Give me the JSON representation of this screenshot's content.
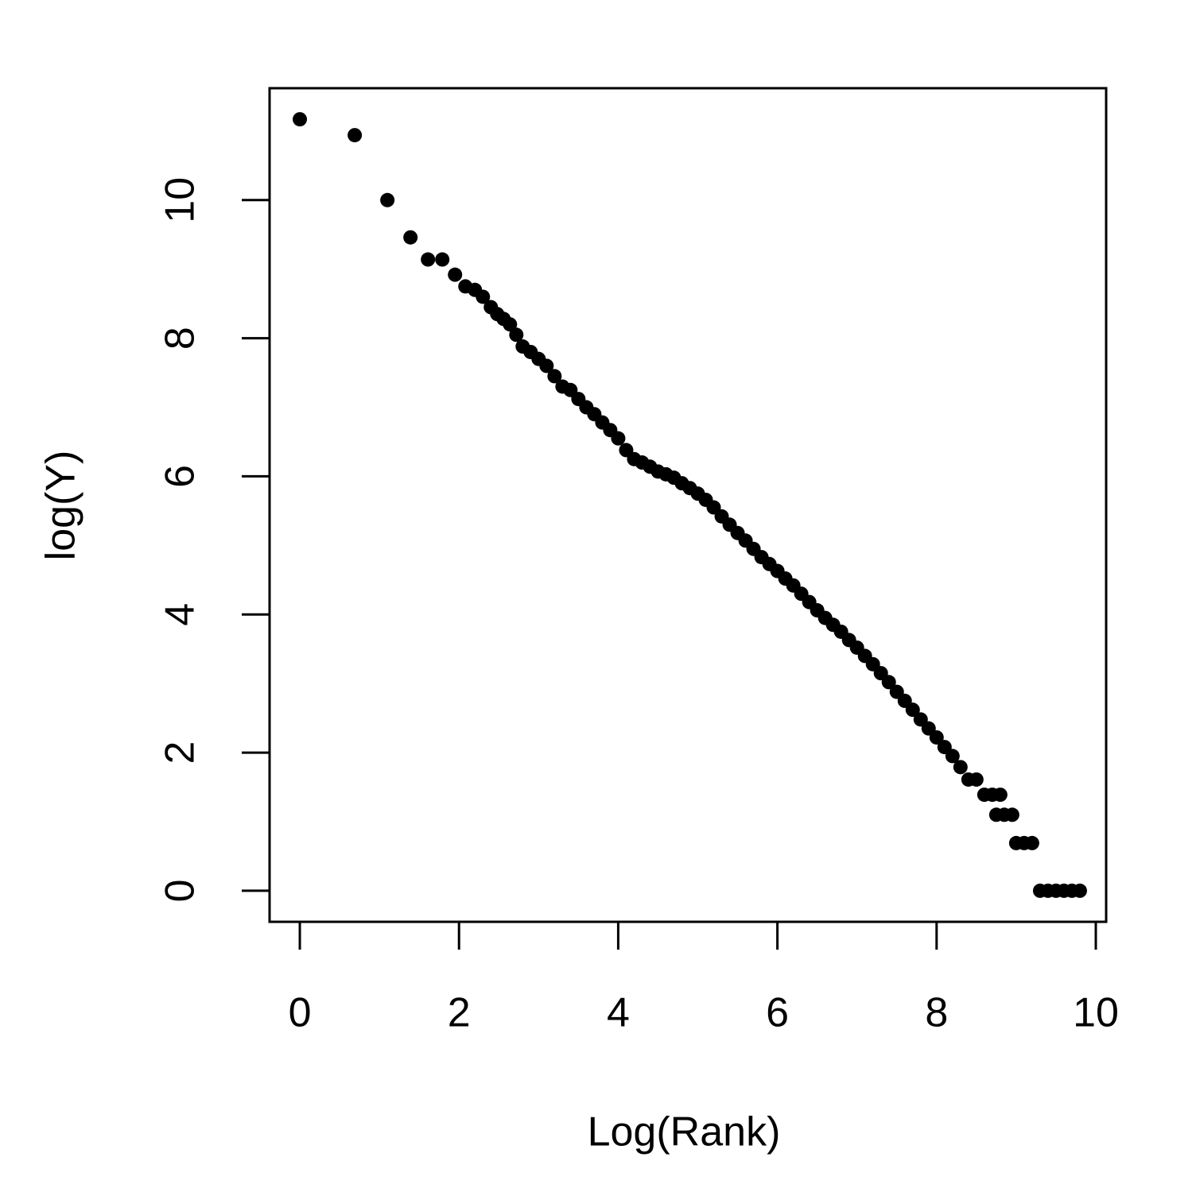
{
  "chart_data": {
    "type": "scatter",
    "xlabel": "Log(Rank)",
    "ylabel": "log(Y)",
    "x": [
      0,
      0.69,
      1.1,
      1.39,
      1.61,
      1.79,
      1.95,
      2.08,
      2.2,
      2.3,
      2.4,
      2.48,
      2.56,
      2.64,
      2.72,
      2.8,
      2.9,
      3.0,
      3.1,
      3.2,
      3.3,
      3.4,
      3.5,
      3.6,
      3.7,
      3.8,
      3.9,
      4.0,
      4.1,
      4.2,
      4.3,
      4.4,
      4.5,
      4.6,
      4.7,
      4.8,
      4.9,
      5.0,
      5.1,
      5.2,
      5.3,
      5.4,
      5.5,
      5.6,
      5.7,
      5.8,
      5.9,
      6.0,
      6.1,
      6.2,
      6.3,
      6.4,
      6.5,
      6.6,
      6.7,
      6.8,
      6.9,
      7.0,
      7.1,
      7.2,
      7.3,
      7.4,
      7.5,
      7.6,
      7.7,
      7.8,
      7.9,
      8.0,
      8.1,
      8.2,
      8.3,
      8.4,
      8.5,
      8.6,
      8.7,
      8.8,
      8.75,
      8.85,
      8.95,
      9.0,
      9.1,
      9.2,
      9.3,
      9.4,
      9.5,
      9.6,
      9.7,
      9.8
    ],
    "y": [
      11.17,
      10.94,
      10.0,
      9.46,
      9.14,
      9.14,
      8.92,
      8.75,
      8.7,
      8.6,
      8.45,
      8.35,
      8.28,
      8.2,
      8.05,
      7.88,
      7.8,
      7.7,
      7.6,
      7.45,
      7.3,
      7.25,
      7.12,
      7.0,
      6.9,
      6.78,
      6.67,
      6.55,
      6.38,
      6.25,
      6.2,
      6.14,
      6.07,
      6.03,
      5.98,
      5.9,
      5.83,
      5.75,
      5.66,
      5.55,
      5.42,
      5.3,
      5.18,
      5.07,
      4.95,
      4.83,
      4.73,
      4.63,
      4.52,
      4.42,
      4.3,
      4.18,
      4.06,
      3.95,
      3.85,
      3.75,
      3.63,
      3.52,
      3.4,
      3.28,
      3.15,
      3.02,
      2.88,
      2.75,
      2.62,
      2.48,
      2.35,
      2.22,
      2.08,
      1.95,
      1.79,
      1.61,
      1.61,
      1.39,
      1.39,
      1.39,
      1.1,
      1.1,
      1.1,
      0.69,
      0.69,
      0.69,
      0,
      0,
      0,
      0,
      0,
      0
    ],
    "color": "#000000",
    "xlim": [
      -0.38,
      10.13
    ],
    "ylim": [
      -0.45,
      11.62
    ],
    "xticks": [
      0,
      2,
      4,
      6,
      8,
      10
    ],
    "yticks": [
      0,
      2,
      4,
      6,
      8,
      10
    ]
  }
}
